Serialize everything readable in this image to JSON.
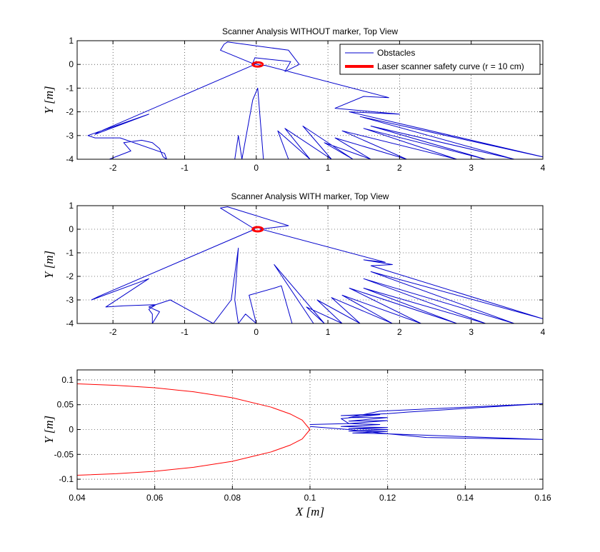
{
  "chart_data": [
    {
      "type": "line",
      "title": "Scanner Analysis WITHOUT marker, Top View",
      "xlabel": "",
      "ylabel": "Y [m]",
      "xlim": [
        -2.5,
        4
      ],
      "ylim": [
        -4,
        1
      ],
      "xticks": [
        -2,
        -1,
        0,
        1,
        2,
        3,
        4
      ],
      "yticks": [
        1,
        0,
        -1,
        -2,
        -3,
        -4
      ],
      "x_tick_labels": [
        "-2",
        "-1",
        "0",
        "1",
        "2",
        "3",
        "4"
      ],
      "y_tick_labels": [
        "1",
        "0",
        "-1",
        "-2",
        "-3",
        "-4"
      ],
      "grid": true,
      "legend_position": "top-right",
      "series": [
        {
          "name": "Obstacles",
          "color": "#0000cc",
          "points": [
            [
              -2.05,
              -4.0
            ],
            [
              -1.75,
              -3.65
            ],
            [
              -1.85,
              -3.3
            ],
            [
              -1.6,
              -3.2
            ],
            [
              -1.45,
              -3.3
            ],
            [
              -1.35,
              -3.55
            ],
            [
              -1.3,
              -3.9
            ],
            [
              -1.25,
              -4.0
            ],
            [
              -1.28,
              -3.75
            ],
            [
              -1.9,
              -3.1
            ],
            [
              -2.25,
              -3.1
            ],
            [
              -2.35,
              -3.0
            ],
            [
              -1.5,
              -2.1
            ],
            [
              -2.25,
              -2.95
            ],
            [
              -2.2,
              -2.85
            ],
            [
              -0.02,
              0.0
            ],
            [
              -0.5,
              0.6
            ],
            [
              -0.45,
              0.85
            ],
            [
              -0.4,
              0.95
            ],
            [
              0.45,
              0.6
            ],
            [
              0.6,
              0.0
            ],
            [
              0.4,
              -0.3
            ],
            [
              0.48,
              0.12
            ],
            [
              -0.02,
              0.28
            ],
            [
              -0.05,
              0.05
            ],
            [
              0.08,
              -0.05
            ],
            [
              0.12,
              -0.04
            ],
            [
              1.85,
              -1.4
            ],
            [
              1.5,
              -1.35
            ],
            [
              1.1,
              -1.85
            ],
            [
              2.0,
              -2.1
            ],
            [
              1.3,
              -2.0
            ],
            [
              4.0,
              -3.9
            ],
            [
              1.45,
              -2.2
            ],
            [
              3.6,
              -4.0
            ],
            [
              1.6,
              -2.6
            ],
            [
              3.2,
              -4.0
            ],
            [
              1.5,
              -2.7
            ],
            [
              2.8,
              -4.0
            ],
            [
              1.2,
              -2.8
            ],
            [
              2.1,
              -4.0
            ],
            [
              1.1,
              -3.1
            ],
            [
              1.6,
              -4.0
            ],
            [
              0.95,
              -3.3
            ],
            [
              1.35,
              -4.0
            ],
            [
              0.65,
              -2.6
            ],
            [
              1.05,
              -4.0
            ],
            [
              0.4,
              -2.7
            ],
            [
              0.75,
              -4.0
            ],
            [
              0.3,
              -2.8
            ],
            [
              0.45,
              -4.0
            ],
            [
              0.1,
              -4.0
            ],
            [
              0.02,
              -1.0
            ],
            [
              -0.05,
              -1.5
            ],
            [
              -0.2,
              -4.0
            ],
            [
              -0.25,
              -3.0
            ],
            [
              -0.3,
              -4.0
            ]
          ]
        },
        {
          "name": "Laser scanner safety curve (r = 10 cm)",
          "color": "#ff0000",
          "shape": "ellipse",
          "center": [
            0.02,
            0.0
          ],
          "rx": 0.07,
          "ry": 0.09
        }
      ]
    },
    {
      "type": "line",
      "title": "Scanner Analysis WITH marker, Top View",
      "xlabel": "",
      "ylabel": "Y [m]",
      "xlim": [
        -2.5,
        4
      ],
      "ylim": [
        -4,
        1
      ],
      "xticks": [
        -2,
        -1,
        0,
        1,
        2,
        3,
        4
      ],
      "yticks": [
        1,
        0,
        -1,
        -2,
        -3,
        -4
      ],
      "x_tick_labels": [
        "-2",
        "-1",
        "0",
        "1",
        "2",
        "3",
        "4"
      ],
      "y_tick_labels": [
        "1",
        "0",
        "-1",
        "-2",
        "-3",
        "-4"
      ],
      "grid": true,
      "series": [
        {
          "name": "Obstacles",
          "color": "#0000cc",
          "points": [
            [
              -1.45,
              -4.0
            ],
            [
              -1.45,
              -3.6
            ],
            [
              -1.5,
              -3.4
            ],
            [
              -1.4,
              -3.2
            ],
            [
              -1.85,
              -3.25
            ],
            [
              -2.1,
              -3.3
            ],
            [
              -1.5,
              -2.1
            ],
            [
              -2.3,
              -3.0
            ],
            [
              -2.2,
              -2.85
            ],
            [
              -0.02,
              0.0
            ],
            [
              -0.5,
              0.9
            ],
            [
              -0.4,
              0.95
            ],
            [
              0.45,
              0.15
            ],
            [
              0.05,
              0.0
            ],
            [
              0.12,
              -0.04
            ],
            [
              1.8,
              -1.4
            ],
            [
              1.5,
              -1.3
            ],
            [
              1.9,
              -1.5
            ],
            [
              1.6,
              -1.55
            ],
            [
              4.0,
              -3.8
            ],
            [
              1.6,
              -1.8
            ],
            [
              3.6,
              -4.0
            ],
            [
              1.5,
              -2.1
            ],
            [
              3.2,
              -4.0
            ],
            [
              1.5,
              -2.5
            ],
            [
              2.8,
              -4.0
            ],
            [
              1.3,
              -2.5
            ],
            [
              2.3,
              -4.0
            ],
            [
              1.2,
              -2.8
            ],
            [
              1.9,
              -4.0
            ],
            [
              1.05,
              -2.9
            ],
            [
              1.45,
              -4.0
            ],
            [
              0.85,
              -3.0
            ],
            [
              1.2,
              -4.0
            ],
            [
              0.7,
              -3.3
            ],
            [
              0.95,
              -4.0
            ],
            [
              0.25,
              -1.5
            ],
            [
              0.8,
              -4.0
            ],
            [
              0.5,
              -4.0
            ],
            [
              0.35,
              -2.4
            ],
            [
              0.25,
              -2.5
            ],
            [
              -0.1,
              -2.8
            ],
            [
              0.0,
              -4.0
            ],
            [
              -0.15,
              -3.6
            ],
            [
              -0.25,
              -4.0
            ],
            [
              -0.3,
              -3.0
            ],
            [
              -0.25,
              -0.8
            ],
            [
              -0.35,
              -3.0
            ],
            [
              -0.6,
              -4.0
            ],
            [
              -1.2,
              -3.0
            ],
            [
              -1.5,
              -3.3
            ],
            [
              -1.35,
              -3.5
            ],
            [
              -1.45,
              -4.0
            ]
          ]
        },
        {
          "name": "Laser scanner safety curve (r = 10 cm)",
          "color": "#ff0000",
          "shape": "ellipse",
          "center": [
            0.02,
            0.0
          ],
          "rx": 0.07,
          "ry": 0.09
        }
      ]
    },
    {
      "type": "line",
      "title": "",
      "xlabel": "X [m]",
      "ylabel": "Y [m]",
      "xlim": [
        0.04,
        0.16
      ],
      "ylim": [
        -0.12,
        0.12
      ],
      "xticks": [
        0.04,
        0.06,
        0.08,
        0.1,
        0.12,
        0.14,
        0.16
      ],
      "yticks": [
        0.1,
        0.05,
        0,
        -0.05,
        -0.1
      ],
      "x_tick_labels": [
        "0.04",
        "0.06",
        "0.08",
        "0.1",
        "0.12",
        "0.14",
        "0.16"
      ],
      "y_tick_labels": [
        "0.1",
        "0.05",
        "0",
        "-0.05",
        "-0.1"
      ],
      "grid": true,
      "series": [
        {
          "name": "Laser scanner safety curve (r = 10 cm)",
          "color": "#ff0000",
          "points": [
            [
              0.04,
              0.092
            ],
            [
              0.05,
              0.089
            ],
            [
              0.06,
              0.084
            ],
            [
              0.07,
              0.076
            ],
            [
              0.08,
              0.064
            ],
            [
              0.09,
              0.045
            ],
            [
              0.095,
              0.031
            ],
            [
              0.098,
              0.019
            ],
            [
              0.1,
              0.0
            ],
            [
              0.098,
              -0.019
            ],
            [
              0.095,
              -0.031
            ],
            [
              0.09,
              -0.045
            ],
            [
              0.08,
              -0.064
            ],
            [
              0.07,
              -0.076
            ],
            [
              0.06,
              -0.084
            ],
            [
              0.05,
              -0.089
            ],
            [
              0.04,
              -0.092
            ]
          ]
        },
        {
          "name": "Obstacles",
          "color": "#0000cc",
          "points": [
            [
              0.1,
              0.01
            ],
            [
              0.11,
              0.012
            ],
            [
              0.108,
              0.022
            ],
            [
              0.118,
              0.03
            ],
            [
              0.108,
              0.028
            ],
            [
              0.12,
              0.032
            ],
            [
              0.125,
              0.035
            ],
            [
              0.135,
              0.04
            ],
            [
              0.16,
              0.052
            ],
            [
              0.118,
              0.037
            ],
            [
              0.11,
              0.024
            ],
            [
              0.12,
              0.024
            ],
            [
              0.11,
              0.017
            ],
            [
              0.12,
              0.018
            ],
            [
              0.11,
              0.012
            ],
            [
              0.118,
              0.01
            ],
            [
              0.108,
              0.006
            ],
            [
              0.12,
              0.004
            ],
            [
              0.11,
              0.002
            ],
            [
              0.12,
              0.0
            ],
            [
              0.11,
              -0.003
            ],
            [
              0.12,
              -0.004
            ],
            [
              0.111,
              -0.007
            ],
            [
              0.118,
              -0.008
            ],
            [
              0.125,
              -0.01
            ],
            [
              0.16,
              -0.02
            ],
            [
              0.13,
              -0.016
            ],
            [
              0.118,
              -0.007
            ],
            [
              0.11,
              0.0
            ],
            [
              0.1,
              0.006
            ]
          ]
        }
      ]
    }
  ]
}
